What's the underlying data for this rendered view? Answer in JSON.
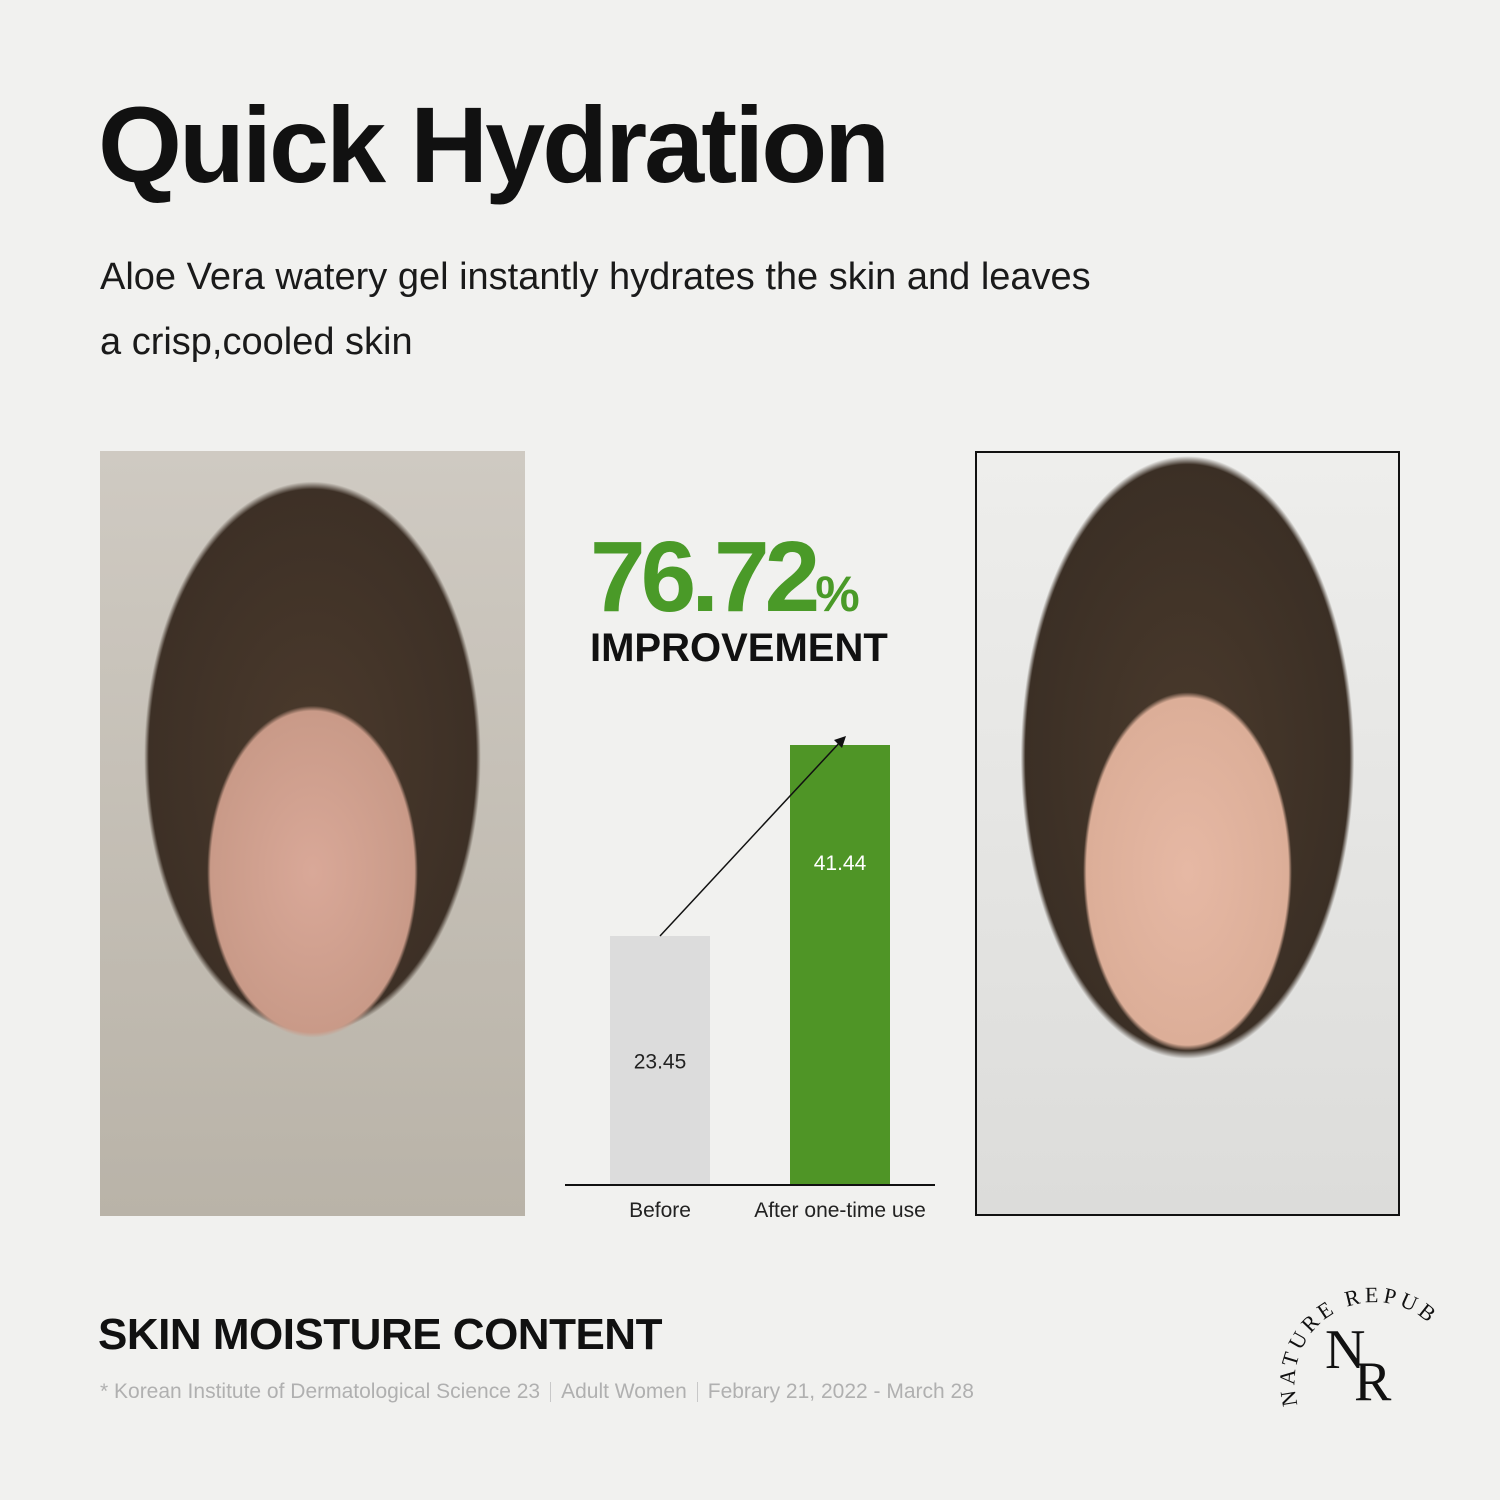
{
  "title": "Quick Hydration",
  "subtitle": "Aloe Vera watery gel instantly hydrates the skin and leaves a crisp,cooled skin",
  "improvement": {
    "value": "76.72",
    "unit": "%",
    "label": "IMPROVEMENT",
    "color": "#4a9a28"
  },
  "chart_data": {
    "type": "bar",
    "categories": [
      "Before",
      "After one-time use"
    ],
    "values": [
      23.45,
      41.44
    ],
    "data_labels": [
      "23.45",
      "41.44"
    ],
    "colors": [
      "#dcdcdc",
      "#4f9526"
    ],
    "ylim": [
      0,
      41.44
    ],
    "grid": false,
    "annotation": "arrow from Before to After"
  },
  "section_title": "SKIN MOISTURE CONTENT",
  "source": [
    "* Korean Institute of Dermatological Science 23",
    "Adult Women",
    "Febrary 21, 2022 - March 28"
  ],
  "logo": {
    "ring_text": "NATURE REPUBLIC",
    "monogram": "NR"
  }
}
